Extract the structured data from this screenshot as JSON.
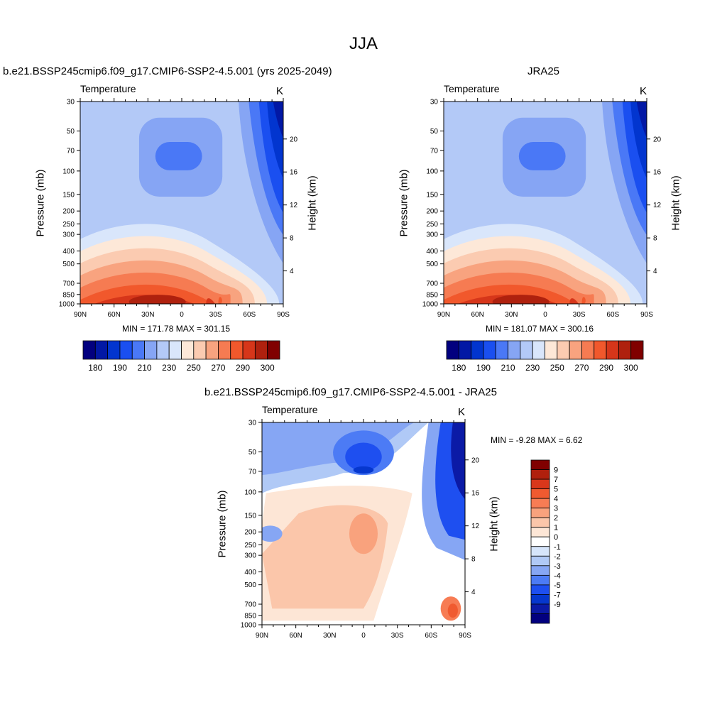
{
  "figure_title": "JJA",
  "panels": [
    {
      "title": "b.e21.BSSP245cmip6.f09_g17.CMIP6-SSP2-4.5.001 (yrs 2025-2049)",
      "variable": "Temperature",
      "units": "K",
      "left_axis_label": "Pressure (mb)",
      "right_axis_label": "Height (km)",
      "min_max_text": "MIN = 171.78  MAX = 301.15"
    },
    {
      "title": "JRA25",
      "variable": "Temperature",
      "units": "K",
      "left_axis_label": "Pressure (mb)",
      "right_axis_label": "Height (km)",
      "min_max_text": "MIN = 181.07  MAX = 300.16"
    },
    {
      "title": "b.e21.BSSP245cmip6.f09_g17.CMIP6-SSP2-4.5.001 - JRA25",
      "variable": "Temperature",
      "units": "K",
      "left_axis_label": "Pressure (mb)",
      "right_axis_label": "Height (km)",
      "min_max_text": "MIN =  -9.28  MAX =   6.62"
    }
  ],
  "colorbars": {
    "absolute": {
      "colors": [
        "#02007f",
        "#0218a5",
        "#0235cf",
        "#1a4ff0",
        "#4a78f6",
        "#86a5f4",
        "#b3c9f7",
        "#d9e6fb",
        "#fde8d8",
        "#fbcbb1",
        "#f8a37f",
        "#f67b52",
        "#f1582c",
        "#d6361a",
        "#af210e",
        "#800000"
      ],
      "labels": [
        "180",
        "190",
        "210",
        "230",
        "250",
        "270",
        "290",
        "300"
      ]
    },
    "difference": {
      "colors": [
        "#800000",
        "#b0200d",
        "#d9371b",
        "#f05a30",
        "#f77c54",
        "#f9a27d",
        "#fbc6aa",
        "#fde6d6",
        "#ffffff",
        "#d6e5fb",
        "#b0c9f6",
        "#86a6f4",
        "#4c7bf5",
        "#1e4ff0",
        "#0637ce",
        "#0b1aa6",
        "#02007f"
      ],
      "labels": [
        "9",
        "7",
        "5",
        "4",
        "3",
        "2",
        "1",
        "0",
        "-1",
        "-2",
        "-3",
        "-4",
        "-5",
        "-7",
        "-9"
      ]
    }
  },
  "chart_data": [
    {
      "type": "heatmap",
      "title": "b.e21.BSSP245cmip6.f09_g17.CMIP6-SSP2-4.5.001 (yrs 2025-2049)",
      "variable": "Temperature",
      "units": "K",
      "x_tick_labels": [
        "90N",
        "60N",
        "30N",
        "0",
        "30S",
        "60S",
        "90S"
      ],
      "x_values": [
        90,
        60,
        30,
        0,
        -30,
        -60,
        -90
      ],
      "y_tick_labels": [
        "30",
        "50",
        "70",
        "100",
        "150",
        "200",
        "250",
        "300",
        "400",
        "500",
        "700",
        "850",
        "1000"
      ],
      "y_values": [
        30,
        50,
        70,
        100,
        150,
        200,
        250,
        300,
        400,
        500,
        700,
        850,
        1000
      ],
      "y_scale": "log",
      "right_tick_labels": [
        "20",
        "16",
        "12",
        "8",
        "4"
      ],
      "xlabel": "",
      "ylabel": "Pressure (mb)",
      "ylabel_right": "Height (km)",
      "min": 171.78,
      "max": 301.15,
      "levels": [
        180,
        190,
        200,
        210,
        220,
        230,
        240,
        250,
        260,
        270,
        280,
        290,
        295,
        300
      ]
    },
    {
      "type": "heatmap",
      "title": "JRA25",
      "variable": "Temperature",
      "units": "K",
      "x_tick_labels": [
        "90N",
        "60N",
        "30N",
        "0",
        "30S",
        "60S",
        "90S"
      ],
      "x_values": [
        90,
        60,
        30,
        0,
        -30,
        -60,
        -90
      ],
      "y_tick_labels": [
        "30",
        "50",
        "70",
        "100",
        "150",
        "200",
        "250",
        "300",
        "400",
        "500",
        "700",
        "850",
        "1000"
      ],
      "y_values": [
        30,
        50,
        70,
        100,
        150,
        200,
        250,
        300,
        400,
        500,
        700,
        850,
        1000
      ],
      "y_scale": "log",
      "right_tick_labels": [
        "20",
        "16",
        "12",
        "8",
        "4"
      ],
      "xlabel": "",
      "ylabel": "Pressure (mb)",
      "ylabel_right": "Height (km)",
      "min": 181.07,
      "max": 300.16,
      "levels": [
        180,
        190,
        200,
        210,
        220,
        230,
        240,
        250,
        260,
        270,
        280,
        290,
        295,
        300
      ]
    },
    {
      "type": "heatmap",
      "title": "b.e21.BSSP245cmip6.f09_g17.CMIP6-SSP2-4.5.001 - JRA25",
      "variable": "Temperature",
      "units": "K",
      "x_tick_labels": [
        "90N",
        "60N",
        "30N",
        "0",
        "30S",
        "60S",
        "90S"
      ],
      "x_values": [
        90,
        60,
        30,
        0,
        -30,
        -60,
        -90
      ],
      "y_tick_labels": [
        "30",
        "50",
        "70",
        "100",
        "150",
        "200",
        "250",
        "300",
        "400",
        "500",
        "700",
        "850",
        "1000"
      ],
      "y_values": [
        30,
        50,
        70,
        100,
        150,
        200,
        250,
        300,
        400,
        500,
        700,
        850,
        1000
      ],
      "y_scale": "log",
      "right_tick_labels": [
        "20",
        "16",
        "12",
        "8",
        "4"
      ],
      "xlabel": "",
      "ylabel": "Pressure (mb)",
      "ylabel_right": "Height (km)",
      "min": -9.28,
      "max": 6.62,
      "levels": [
        -9,
        -7,
        -5,
        -4,
        -3,
        -2,
        -1,
        0,
        1,
        2,
        3,
        4,
        5,
        7,
        9
      ]
    }
  ]
}
